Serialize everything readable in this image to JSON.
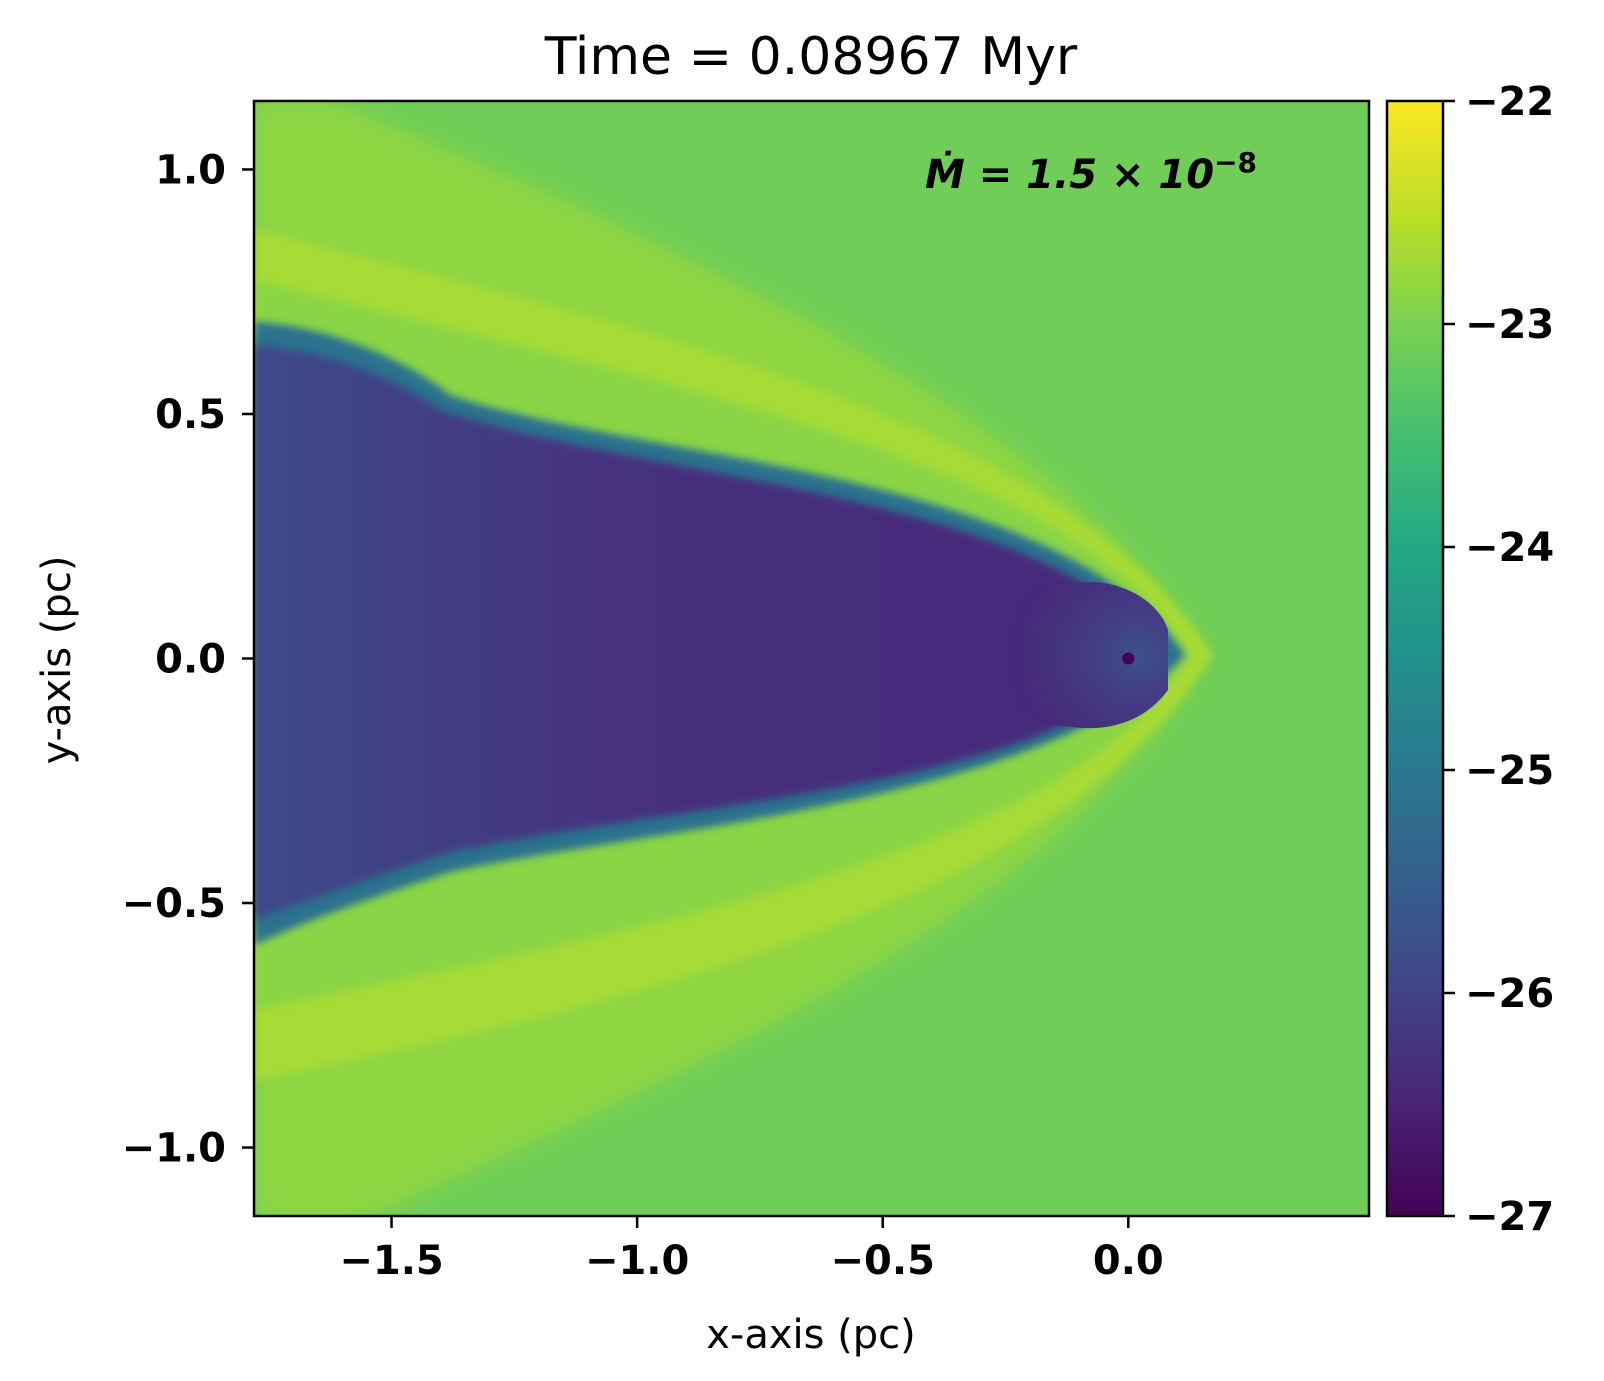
{
  "chart_data": {
    "type": "heatmap",
    "title": "Time = 0.08967 Myr",
    "xlabel": "x-axis (pc)",
    "ylabel": "y-axis (pc)",
    "xlim": [
      -1.78,
      0.49
    ],
    "ylim": [
      -1.14,
      1.14
    ],
    "xticks": [
      -1.5,
      -1.0,
      -0.5,
      0.0
    ],
    "xtick_labels": [
      "−1.5",
      "−1.0",
      "−0.5",
      "0.0"
    ],
    "yticks": [
      1.0,
      0.5,
      0.0,
      -0.5,
      -1.0
    ],
    "ytick_labels": [
      "1.0",
      "0.5",
      "0.0",
      "−0.5",
      "−1.0"
    ],
    "colorbar": {
      "colormap": "viridis",
      "range": [
        -27,
        -22
      ],
      "ticks": [
        -22,
        -23,
        -24,
        -25,
        -26,
        -27
      ],
      "tick_labels": [
        "−22",
        "−23",
        "−24",
        "−25",
        "−26",
        "−27"
      ]
    },
    "annotation": {
      "symbol": "Ṁ = 1.5 × 10",
      "exponent": "−8"
    },
    "colors": {
      "ambient": "#6fcd58",
      "shell": "#a7db35",
      "outer_shell": "#93d741",
      "tail": "#472d7b",
      "tail_edge": "#2c728e",
      "bubble": "#3b528b",
      "star": "#440154"
    }
  }
}
